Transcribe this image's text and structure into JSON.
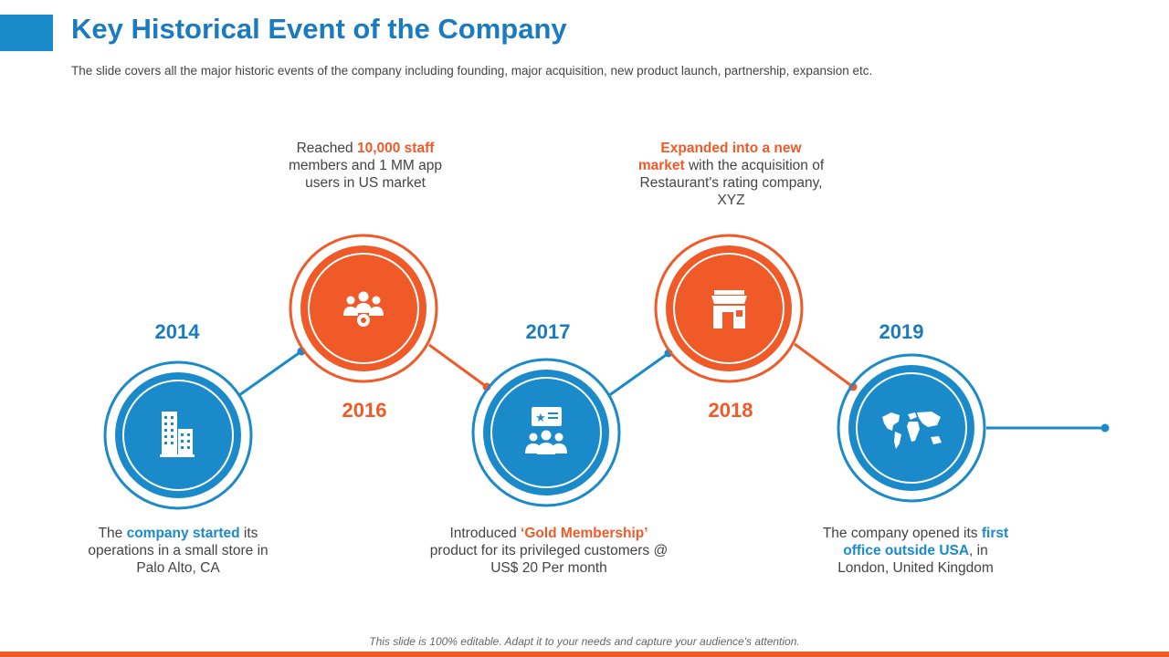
{
  "header": {
    "title": "Key Historical Event of the Company",
    "subtitle": "The slide covers all the major historic events of the company including founding, major acquisition, new product launch, partnership, expansion etc."
  },
  "colors": {
    "blue": "#1B8ACB",
    "orange": "#F05A28",
    "title_blue": "#1B7BBF",
    "text_gray": "#444444"
  },
  "events": [
    {
      "year": "2014",
      "icon": "buildings-icon",
      "desc_a": "The ",
      "desc_hl": "company started",
      "desc_b": " its operations in a small store in Palo Alto, CA"
    },
    {
      "year": "2016",
      "icon": "team-gear-icon",
      "desc_a": "Reached ",
      "desc_hl": "10,000 staff",
      "desc_b": " members and 1 MM app users in US market"
    },
    {
      "year": "2017",
      "icon": "membership-card-icon",
      "desc_a": "Introduced ",
      "desc_hl": "‘Gold Membership’",
      "desc_b": " product for its privileged customers @ US$ 20 Per month"
    },
    {
      "year": "2018",
      "icon": "storefront-icon",
      "desc_a": "",
      "desc_hl": "Expanded into a new market",
      "desc_b": " with the acquisition of Restaurant's rating company, XYZ"
    },
    {
      "year": "2019",
      "icon": "world-map-icon",
      "desc_a": "The company opened its ",
      "desc_hl": "first office outside USA",
      "desc_b": ", in London, United Kingdom"
    }
  ],
  "footer": {
    "note": "This slide is 100% editable. Adapt it to your needs and capture your audience's attention."
  }
}
